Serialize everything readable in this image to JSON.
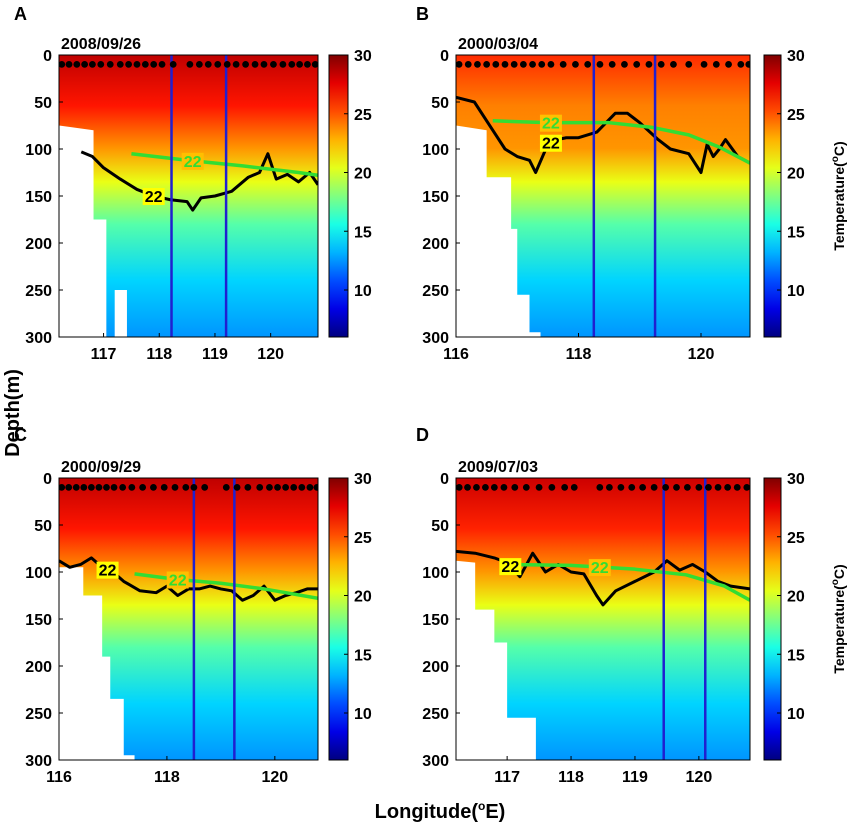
{
  "figure": {
    "ylabel": "Depth(m)",
    "xlabel_main": "Longitude(",
    "xlabel_sup": "o",
    "xlabel_end": "E)"
  },
  "colorbar": {
    "label_main": "Temperature(",
    "label_sup": "o",
    "label_end": "C)",
    "ticks": [
      "10",
      "15",
      "20",
      "25",
      "30"
    ],
    "range": [
      6,
      30
    ]
  },
  "chart_data": [
    {
      "type": "heatmap",
      "panel": "A",
      "date": "2008/09/26",
      "xlim": [
        116.2,
        120.85
      ],
      "ylim": [
        300,
        0
      ],
      "xticks": [
        "117",
        "118",
        "119",
        "120"
      ],
      "yticks": [
        "0",
        "50",
        "100",
        "150",
        "200",
        "250",
        "300"
      ],
      "stations_lon": [
        116.25,
        116.38,
        116.52,
        116.66,
        116.8,
        116.95,
        117.12,
        117.3,
        117.45,
        117.6,
        117.75,
        117.9,
        118.05,
        118.25,
        118.55,
        118.72,
        118.88,
        119.05,
        119.22,
        119.38,
        119.55,
        119.72,
        119.88,
        120.05,
        120.22,
        120.38,
        120.52,
        120.66,
        120.8
      ],
      "isotherm_22": {
        "lon": [
          116.6,
          116.8,
          117.0,
          117.3,
          117.6,
          117.9,
          118.2,
          118.5,
          118.6,
          118.75,
          119.0,
          119.3,
          119.6,
          119.8,
          119.95,
          120.1,
          120.3,
          120.5,
          120.7,
          120.85
        ],
        "depth": [
          103,
          108,
          120,
          132,
          143,
          150,
          154,
          156,
          165,
          152,
          150,
          145,
          130,
          125,
          105,
          132,
          127,
          135,
          125,
          138
        ]
      },
      "isotherm_22_label_lon": 117.9,
      "climatology_22": {
        "lon": [
          117.5,
          118.5,
          119.5,
          120.5,
          120.85
        ],
        "depth": [
          105,
          112,
          118,
          125,
          128
        ]
      },
      "climatology_label_lon": 118.6,
      "blue_lines_lon": [
        118.22,
        119.2
      ],
      "sst_surface": 28.5,
      "bottom_profile": {
        "lon": [
          116.2,
          116.82,
          116.82,
          117.05,
          117.05,
          117.2,
          117.2,
          117.42,
          117.42,
          120.85
        ],
        "depth": [
          75,
          80,
          175,
          175,
          328,
          328,
          250,
          250,
          328,
          328
        ]
      }
    },
    {
      "type": "heatmap",
      "panel": "B",
      "date": "2000/03/04",
      "xlim": [
        116.0,
        120.8
      ],
      "ylim": [
        300,
        0
      ],
      "xticks": [
        "116",
        "118",
        "120"
      ],
      "yticks": [
        "0",
        "50",
        "100",
        "150",
        "200",
        "250",
        "300"
      ],
      "stations_lon": [
        116.05,
        116.2,
        116.35,
        116.5,
        116.65,
        116.8,
        116.95,
        117.1,
        117.25,
        117.4,
        117.55,
        117.75,
        117.95,
        118.15,
        118.35,
        118.55,
        118.75,
        118.95,
        119.15,
        119.35,
        119.55,
        119.8,
        120.05,
        120.25,
        120.45,
        120.65,
        120.78
      ],
      "isotherm_22": {
        "lon": [
          116.0,
          116.3,
          116.6,
          116.8,
          117.0,
          117.2,
          117.3,
          117.5,
          117.65,
          117.8,
          118.0,
          118.3,
          118.6,
          118.8,
          119.0,
          119.3,
          119.5,
          119.8,
          120.0,
          120.1,
          120.2,
          120.3,
          120.4,
          120.6,
          120.8
        ],
        "depth": [
          45,
          50,
          80,
          100,
          108,
          112,
          125,
          95,
          90,
          88,
          88,
          82,
          62,
          62,
          72,
          90,
          100,
          105,
          125,
          95,
          108,
          100,
          90,
          108,
          115
        ]
      },
      "isotherm_22_label_lon": 117.55,
      "climatology_22": {
        "lon": [
          116.6,
          117.5,
          118.5,
          119.2,
          119.8,
          120.3,
          120.8
        ],
        "depth": [
          70,
          72,
          72,
          77,
          85,
          98,
          115
        ]
      },
      "climatology_label_lon": 117.55,
      "blue_lines_lon": [
        118.25,
        119.25
      ],
      "sst_surface": 26,
      "bottom_profile": {
        "lon": [
          116.0,
          116.5,
          116.5,
          116.9,
          116.9,
          117.0,
          117.0,
          117.2,
          117.2,
          117.38,
          117.38,
          120.8
        ],
        "depth": [
          75,
          80,
          130,
          130,
          185,
          185,
          255,
          255,
          295,
          295,
          328,
          328
        ]
      }
    },
    {
      "type": "heatmap",
      "panel": "C",
      "date": "2000/09/29",
      "xlim": [
        116.0,
        120.8
      ],
      "ylim": [
        300,
        0
      ],
      "xticks": [
        "116",
        "118",
        "120"
      ],
      "yticks": [
        "0",
        "50",
        "100",
        "150",
        "200",
        "250",
        "300"
      ],
      "stations_lon": [
        116.05,
        116.18,
        116.32,
        116.46,
        116.6,
        116.74,
        116.88,
        117.02,
        117.18,
        117.35,
        117.55,
        117.75,
        117.95,
        118.15,
        118.35,
        118.5,
        118.7,
        119.1,
        119.3,
        119.5,
        119.72,
        119.9,
        120.05,
        120.2,
        120.35,
        120.5,
        120.65,
        120.78
      ],
      "isotherm_22": {
        "lon": [
          116.0,
          116.2,
          116.4,
          116.6,
          116.8,
          117.0,
          117.2,
          117.5,
          117.8,
          118.0,
          118.2,
          118.4,
          118.6,
          118.8,
          119.0,
          119.2,
          119.4,
          119.6,
          119.8,
          120.0,
          120.2,
          120.4,
          120.6,
          120.8
        ],
        "depth": [
          88,
          95,
          92,
          85,
          95,
          100,
          110,
          120,
          122,
          115,
          125,
          118,
          118,
          115,
          118,
          120,
          130,
          125,
          115,
          130,
          125,
          122,
          118,
          118
        ]
      },
      "isotherm_22_label_lon": 116.9,
      "climatology_22": {
        "lon": [
          117.4,
          118.2,
          119.0,
          119.8,
          120.8
        ],
        "depth": [
          102,
          108,
          112,
          118,
          128
        ]
      },
      "climatology_label_lon": 118.2,
      "blue_lines_lon": [
        118.5,
        119.25
      ],
      "sst_surface": 28.5,
      "bottom_profile": {
        "lon": [
          116.0,
          116.45,
          116.45,
          116.8,
          116.8,
          116.95,
          116.95,
          117.2,
          117.2,
          117.4,
          117.4,
          120.8
        ],
        "depth": [
          95,
          95,
          125,
          125,
          190,
          190,
          235,
          235,
          295,
          295,
          328,
          328
        ]
      }
    },
    {
      "type": "heatmap",
      "panel": "D",
      "date": "2009/07/03",
      "xlim": [
        116.2,
        120.8
      ],
      "ylim": [
        300,
        0
      ],
      "xticks": [
        "117",
        "118",
        "119",
        "120"
      ],
      "yticks": [
        "0",
        "50",
        "100",
        "150",
        "200",
        "250",
        "300"
      ],
      "stations_lon": [
        116.25,
        116.38,
        116.52,
        116.66,
        116.8,
        116.95,
        117.12,
        117.3,
        117.5,
        117.7,
        117.9,
        118.05,
        118.45,
        118.6,
        118.78,
        118.95,
        119.12,
        119.3,
        119.48,
        119.65,
        119.82,
        120.0,
        120.15,
        120.3,
        120.45,
        120.6,
        120.75
      ],
      "isotherm_22": {
        "lon": [
          116.2,
          116.5,
          116.8,
          117.0,
          117.2,
          117.4,
          117.6,
          117.8,
          118.0,
          118.2,
          118.4,
          118.5,
          118.7,
          119.0,
          119.3,
          119.5,
          119.7,
          119.9,
          120.1,
          120.3,
          120.5,
          120.8
        ],
        "depth": [
          78,
          80,
          85,
          90,
          105,
          80,
          100,
          92,
          100,
          102,
          125,
          135,
          120,
          110,
          100,
          88,
          98,
          92,
          100,
          110,
          115,
          118
        ]
      },
      "isotherm_22_label_lon": 117.05,
      "climatology_22": {
        "lon": [
          117.0,
          118.0,
          119.0,
          119.8,
          120.4,
          120.8
        ],
        "depth": [
          92,
          93,
          97,
          103,
          115,
          130
        ]
      },
      "climatology_label_lon": 118.45,
      "blue_lines_lon": [
        119.45,
        120.1
      ],
      "sst_surface": 28.2,
      "bottom_profile": {
        "lon": [
          116.2,
          116.5,
          116.5,
          116.8,
          116.8,
          117.0,
          117.0,
          117.45,
          117.45,
          120.8
        ],
        "depth": [
          88,
          90,
          140,
          140,
          175,
          175,
          255,
          255,
          328,
          328
        ]
      }
    }
  ]
}
